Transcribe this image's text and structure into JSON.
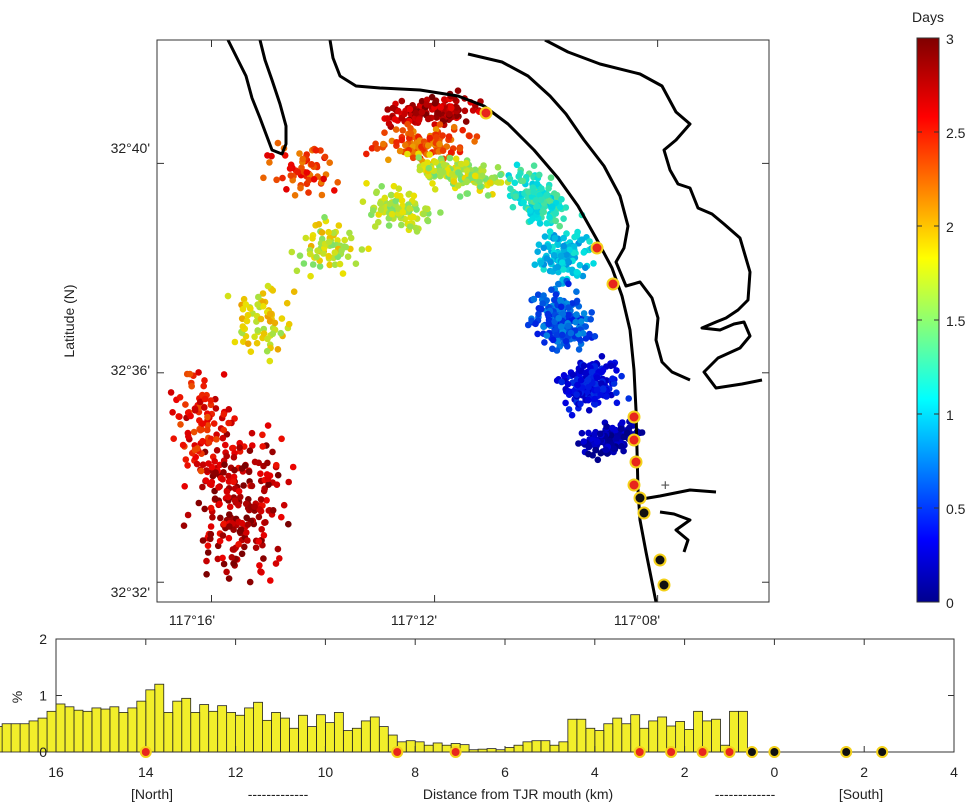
{
  "colors": {
    "coast": "#000000",
    "bar_fill": "#f2ee2a",
    "bar_edge": "#222222",
    "north_site": "#e8261c",
    "south_site": "#111111",
    "site_ring": "#f4d11a"
  },
  "chart_data": [
    {
      "type": "scatter",
      "xlabel": "Longitude (W)",
      "ylabel": "Latitude (N)",
      "xlim": [
        117.283,
        117.1
      ],
      "ylim": [
        32.527,
        32.706
      ],
      "x_tick_labels": [
        "117°16'",
        "117°12'",
        "117°08'"
      ],
      "x_ticks": [
        117.2667,
        117.2,
        117.1333
      ],
      "y_tick_labels": [
        "32°32'",
        "32°36'",
        "32°40'"
      ],
      "y_ticks": [
        32.5333,
        32.6,
        32.6667
      ],
      "colorbar": {
        "label": "Days",
        "range": [
          0,
          3
        ],
        "ticks": [
          0,
          0.5,
          1,
          1.5,
          2,
          2.5,
          3
        ],
        "tick_labels": [
          "0",
          "0.5",
          "1",
          "1.5",
          "2",
          "2.5",
          "3"
        ],
        "colormap": "jet"
      },
      "release_point": {
        "lon": 117.131,
        "lat": 32.564
      },
      "coastline_color": "#000000",
      "grid": false,
      "particle_groups_age_days": [
        {
          "age_range": [
            2.5,
            3
          ],
          "region": "northern edge, near 32°41'"
        },
        {
          "age_range": [
            2,
            2.6
          ],
          "region": "northern arc"
        },
        {
          "age_range": [
            1.5,
            2
          ],
          "region": "central arc, north"
        },
        {
          "age_range": [
            0.9,
            1.4
          ],
          "region": "eastern arc along coast"
        },
        {
          "age_range": [
            0,
            0.8
          ],
          "region": "southern coastal tongue near release"
        },
        {
          "age_range": [
            1.3,
            2
          ],
          "region": "western arc"
        },
        {
          "age_range": [
            2.4,
            3
          ],
          "region": "southwest cluster"
        }
      ]
    },
    {
      "type": "bar",
      "ylabel": "%",
      "xlabel": "Distance from TJR mouth (km)",
      "xlabel_north": "[North]",
      "xlabel_south": "[South]",
      "xlabel_dashes": "-------------",
      "xlim": [
        16,
        -4
      ],
      "ylim": [
        0,
        2
      ],
      "x_tick_labels": [
        "16",
        "14",
        "12",
        "10",
        "8",
        "6",
        "4",
        "2",
        "0",
        "2",
        "4"
      ],
      "x_ticks": [
        16,
        14,
        12,
        10,
        8,
        6,
        4,
        2,
        0,
        -2,
        -4
      ],
      "y_tick_labels": [
        "0",
        "1",
        "2"
      ],
      "y_ticks": [
        0,
        1,
        2
      ],
      "bin_width_km": 0.2,
      "bin_start_km": 0.6,
      "values": [
        0.72,
        0.72,
        0.12,
        0.58,
        0.55,
        0.72,
        0.4,
        0.54,
        0.46,
        0.62,
        0.55,
        0.42,
        0.66,
        0.5,
        0.6,
        0.5,
        0.38,
        0.42,
        0.58,
        0.58,
        0.18,
        0.12,
        0.2,
        0.2,
        0.18,
        0.12,
        0.08,
        0.04,
        0.06,
        0.05,
        0.04,
        0.13,
        0.15,
        0.12,
        0.16,
        0.12,
        0.18,
        0.2,
        0.18,
        0.3,
        0.45,
        0.62,
        0.55,
        0.42,
        0.38,
        0.7,
        0.52,
        0.66,
        0.45,
        0.65,
        0.42,
        0.6,
        0.7,
        0.56,
        0.88,
        0.78,
        0.65,
        0.7,
        0.82,
        0.72,
        0.84,
        0.7,
        0.95,
        0.9,
        0.7,
        1.2,
        1.1,
        0.9,
        0.78,
        0.7,
        0.8,
        0.76,
        0.78,
        0.72,
        0.74,
        0.8,
        0.85,
        0.72,
        0.6,
        0.55,
        0.5,
        0.5,
        0.5,
        0.45,
        0.55,
        0.58,
        0.5,
        0.48,
        0.5,
        0.45,
        0.42,
        0.55,
        0.6,
        0.5,
        0.45,
        0.45,
        0.55,
        0.6,
        0.5,
        0.45,
        0.45,
        0.28,
        0.32,
        0.28,
        0.28,
        0.27,
        0.25,
        0.22,
        0.2,
        0.3
      ],
      "sites_north_km": [
        14,
        8.4,
        7.1,
        3,
        2.3,
        1.6,
        1
      ],
      "sites_south_km": [
        0.5,
        0,
        -1.6,
        -2.4
      ]
    }
  ]
}
